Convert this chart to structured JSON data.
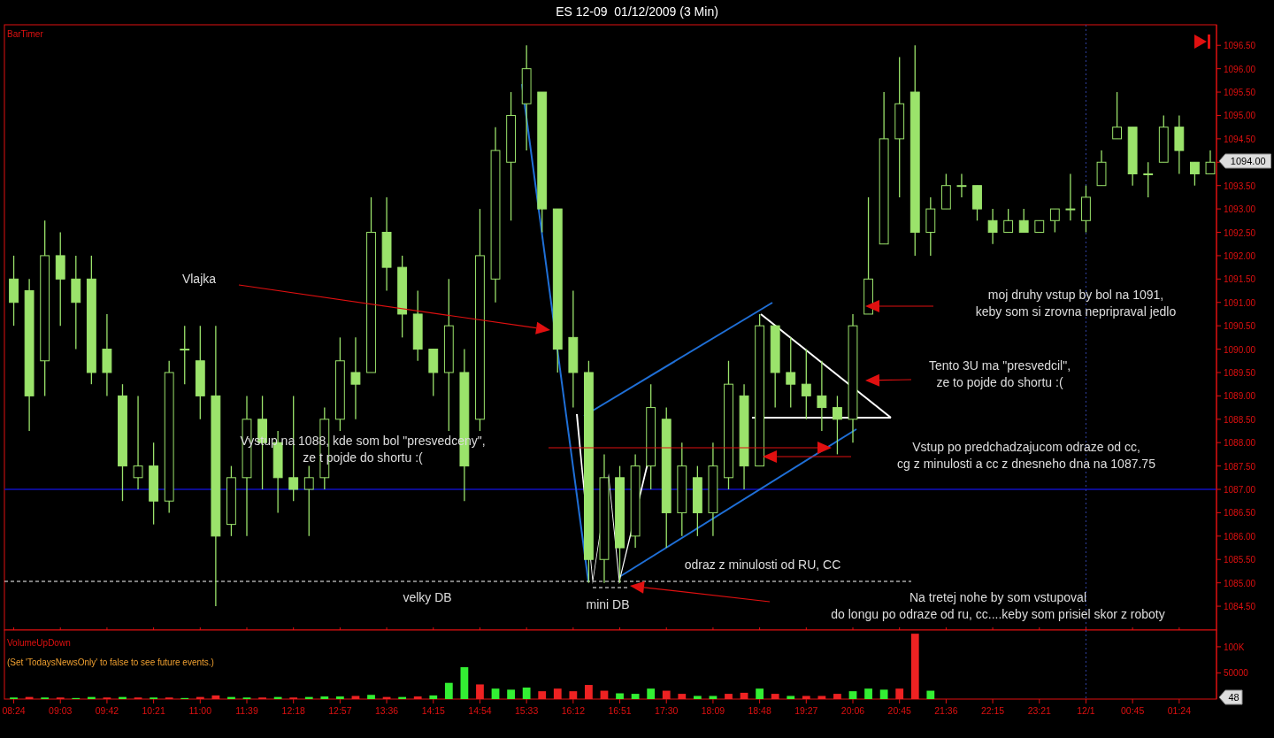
{
  "chart_data": [
    {
      "type": "candlestick",
      "title": "ES 12-09  01/12/2009 (3 Min)",
      "ylim": [
        1083.99,
        1096.94
      ],
      "tick_labels": "y",
      "color": "#9be36b",
      "categories": [
        "08:24",
        null,
        null,
        "09:03",
        null,
        null,
        "09:42",
        null,
        null,
        "10:21",
        null,
        null,
        "11:00",
        null,
        null,
        "11:39",
        null,
        null,
        "12:18",
        null,
        null,
        "12:57",
        null,
        null,
        "13:36",
        null,
        null,
        "14:15",
        null,
        null,
        "14:54",
        null,
        null,
        "15:33",
        null,
        null,
        "16:12",
        null,
        null,
        "16:51",
        null,
        null,
        "17:30",
        null,
        null,
        "18:09",
        null,
        null,
        "18:48",
        null,
        null,
        "19:27",
        null,
        null,
        "20:06",
        null,
        null,
        "20:45",
        null,
        null,
        "21:36",
        null,
        null,
        "22:15",
        null,
        null,
        "23:21",
        null,
        null,
        "12/1",
        null,
        null,
        "00:45",
        null,
        null,
        "01:24",
        null,
        null
      ],
      "ohlc": [
        [
          1091.5,
          1092.0,
          1090.5,
          1091.0
        ],
        [
          1091.25,
          1091.5,
          1088.25,
          1089.0
        ],
        [
          1089.75,
          1092.75,
          1089.0,
          1092.0
        ],
        [
          1092.0,
          1092.5,
          1090.5,
          1091.5
        ],
        [
          1091.5,
          1092.0,
          1090.0,
          1091.0
        ],
        [
          1091.5,
          1092.0,
          1089.25,
          1089.5
        ],
        [
          1090.0,
          1090.75,
          1089.0,
          1089.5
        ],
        [
          1089.0,
          1089.25,
          1086.75,
          1087.5
        ],
        [
          1087.25,
          1089.0,
          1087.0,
          1087.5
        ],
        [
          1087.5,
          1088.0,
          1086.25,
          1086.75
        ],
        [
          1086.75,
          1089.75,
          1086.5,
          1089.5
        ],
        [
          1090.0,
          1090.5,
          1089.25,
          1090.0
        ],
        [
          1089.75,
          1090.5,
          1088.5,
          1089.0
        ],
        [
          1089.0,
          1090.5,
          1084.5,
          1086.0
        ],
        [
          1086.25,
          1087.5,
          1086.0,
          1087.25
        ],
        [
          1087.25,
          1089.0,
          1086.0,
          1088.5
        ],
        [
          1088.5,
          1089.0,
          1087.0,
          1088.0
        ],
        [
          1088.0,
          1088.25,
          1086.5,
          1087.25
        ],
        [
          1087.25,
          1089.0,
          1086.75,
          1087.0
        ],
        [
          1087.0,
          1087.5,
          1086.0,
          1087.25
        ],
        [
          1087.25,
          1088.75,
          1087.0,
          1088.5
        ],
        [
          1088.5,
          1090.25,
          1088.25,
          1089.75
        ],
        [
          1089.5,
          1090.25,
          1088.5,
          1089.25
        ],
        [
          1089.5,
          1093.25,
          1089.5,
          1092.5
        ],
        [
          1092.5,
          1093.25,
          1091.25,
          1091.75
        ],
        [
          1091.75,
          1092.0,
          1090.25,
          1090.75
        ],
        [
          1090.75,
          1091.25,
          1089.75,
          1090.0
        ],
        [
          1090.0,
          1090.0,
          1089.0,
          1089.5
        ],
        [
          1089.5,
          1091.5,
          1088.25,
          1090.5
        ],
        [
          1089.5,
          1090.0,
          1086.75,
          1087.5
        ],
        [
          1088.5,
          1093.0,
          1088.25,
          1092.0
        ],
        [
          1091.5,
          1094.75,
          1091.0,
          1094.25
        ],
        [
          1094.0,
          1095.5,
          1092.75,
          1095.0
        ],
        [
          1095.25,
          1096.5,
          1094.25,
          1096.0
        ],
        [
          1095.5,
          1095.5,
          1092.5,
          1093.0
        ],
        [
          1093.0,
          1093.0,
          1089.5,
          1090.0
        ],
        [
          1090.25,
          1091.25,
          1088.75,
          1089.5
        ],
        [
          1089.5,
          1089.75,
          1085.0,
          1085.5
        ],
        [
          1085.5,
          1087.75,
          1085.0,
          1087.25
        ],
        [
          1087.25,
          1087.5,
          1085.0,
          1085.75
        ],
        [
          1086.0,
          1087.75,
          1085.75,
          1087.5
        ],
        [
          1087.5,
          1089.25,
          1087.0,
          1088.75
        ],
        [
          1088.5,
          1088.75,
          1085.75,
          1086.5
        ],
        [
          1086.5,
          1088.0,
          1086.0,
          1087.5
        ],
        [
          1087.25,
          1087.5,
          1086.0,
          1086.5
        ],
        [
          1086.5,
          1088.0,
          1086.0,
          1087.5
        ],
        [
          1087.25,
          1089.75,
          1087.0,
          1089.25
        ],
        [
          1089.0,
          1089.25,
          1087.0,
          1087.5
        ],
        [
          1087.5,
          1090.75,
          1087.5,
          1090.5
        ],
        [
          1090.5,
          1090.5,
          1088.75,
          1089.5
        ],
        [
          1089.5,
          1090.25,
          1088.75,
          1089.25
        ],
        [
          1089.25,
          1090.0,
          1088.5,
          1089.0
        ],
        [
          1089.0,
          1089.75,
          1088.25,
          1088.75
        ],
        [
          1088.75,
          1089.0,
          1087.75,
          1088.5
        ],
        [
          1088.5,
          1090.75,
          1088.0,
          1090.5
        ],
        [
          1090.75,
          1093.25,
          1090.75,
          1091.5
        ],
        [
          1092.25,
          1095.5,
          1092.25,
          1094.5
        ],
        [
          1094.5,
          1096.25,
          1093.25,
          1095.25
        ],
        [
          1095.5,
          1096.5,
          1092.0,
          1092.5
        ],
        [
          1092.5,
          1093.25,
          1092.0,
          1093.0
        ],
        [
          1093.0,
          1093.75,
          1093.0,
          1093.5
        ],
        [
          1093.5,
          1093.75,
          1093.25,
          1093.5
        ],
        [
          1093.5,
          1093.5,
          1092.75,
          1093.0
        ],
        [
          1092.75,
          1093.0,
          1092.25,
          1092.5
        ],
        [
          1092.5,
          1093.0,
          1092.5,
          1092.75
        ],
        [
          1092.75,
          1093.0,
          1092.5,
          1092.5
        ],
        [
          1092.5,
          1092.75,
          1092.5,
          1092.75
        ],
        [
          1092.75,
          1093.0,
          1092.5,
          1093.0
        ],
        [
          1093.0,
          1093.75,
          1092.75,
          1093.0
        ],
        [
          1092.75,
          1093.5,
          1092.5,
          1093.25
        ],
        [
          1093.5,
          1094.25,
          1093.5,
          1094.0
        ],
        [
          1094.5,
          1095.5,
          1094.5,
          1094.75
        ],
        [
          1094.75,
          1094.75,
          1093.5,
          1093.75
        ],
        [
          1093.75,
          1094.0,
          1093.25,
          1093.75
        ],
        [
          1094.0,
          1095.0,
          1094.0,
          1094.75
        ],
        [
          1094.75,
          1095.0,
          1093.75,
          1094.25
        ],
        [
          1094.0,
          1094.0,
          1093.5,
          1093.75
        ],
        [
          1093.75,
          1094.25,
          1093.75,
          1094.0
        ]
      ],
      "yticks": [
        {
          "value": 1084.5,
          "label": "1084.50"
        },
        {
          "value": 1085,
          "label": "1085.00"
        },
        {
          "value": 1085.5,
          "label": "1085.50"
        },
        {
          "value": 1086,
          "label": "1086.00"
        },
        {
          "value": 1086.5,
          "label": "1086.50"
        },
        {
          "value": 1087,
          "label": "1087.00"
        },
        {
          "value": 1087.5,
          "label": "1087.50"
        },
        {
          "value": 1088,
          "label": "1088.00"
        },
        {
          "value": 1088.5,
          "label": "1088.50"
        },
        {
          "value": 1089,
          "label": "1089.00"
        },
        {
          "value": 1089.5,
          "label": "1089.50"
        },
        {
          "value": 1090,
          "label": "1090.00"
        },
        {
          "value": 1090.5,
          "label": "1090.50"
        },
        {
          "value": 1091,
          "label": "1091.00"
        },
        {
          "value": 1091.5,
          "label": "1091.50"
        },
        {
          "value": 1092,
          "label": "1092.00"
        },
        {
          "value": 1092.5,
          "label": "1092.50"
        },
        {
          "value": 1093,
          "label": "1093.00"
        },
        {
          "value": 1093.5,
          "label": "1093.50"
        },
        {
          "value": 1094,
          "label": null
        },
        {
          "value": 1094.5,
          "label": "1094.50"
        },
        {
          "value": 1095,
          "label": "1095.00"
        },
        {
          "value": 1095.5,
          "label": "1095.50"
        },
        {
          "value": 1096,
          "label": "1096.00"
        },
        {
          "value": 1096.5,
          "label": "1096.50"
        }
      ],
      "ref_lines": [
        {
          "axis": "y",
          "value": 1087,
          "color": "#1010c0"
        },
        {
          "axis": "x",
          "value": "12/1",
          "color": "#3040a0",
          "line_style": "dotted"
        }
      ],
      "annotations": [
        "BarTimer",
        "Vlajka",
        "Vystup na 1088, kde som bol \"presvedceny\",\nze t pojde do shortu :(",
        "velky DB",
        "mini DB",
        "odraz z minulosti od RU, CC",
        "Na tretej nohe by som vstupoval\ndo longu po odraze od ru, cc....keby som prisiel skor z roboty",
        "moj druhy vstup by bol na 1091,\nkeby som si zrovna nepripraval jedlo",
        "Tento 3U ma \"presvedcil\",\nze to pojde do shortu :(",
        "Vstup po predchadzajucom odraze od cc,\ncg z minulosti a cc z dnesneho dna na 1087.75",
        "1094.00"
      ]
    },
    {
      "type": "bar",
      "ylim": [
        0,
        132000
      ],
      "categories": [
        "08:24",
        null,
        null,
        "09:03",
        null,
        null,
        "09:42",
        null,
        null,
        "10:21",
        null,
        null,
        "11:00",
        null,
        null,
        "11:39",
        null,
        null,
        "12:18",
        null,
        null,
        "12:57",
        null,
        null,
        "13:36",
        null,
        null,
        "14:15",
        null,
        null,
        "14:54",
        null,
        null,
        "15:33",
        null,
        null,
        "16:12",
        null,
        null,
        "16:51",
        null,
        null,
        "17:30",
        null,
        null,
        "18:09",
        null,
        null,
        "18:48",
        null,
        null,
        "19:27",
        null,
        null,
        "20:06",
        null,
        null,
        "20:45",
        null,
        null,
        "21:36",
        null,
        null,
        "22:15",
        null,
        null,
        "23:21",
        null,
        null,
        "12/1",
        null,
        null,
        "00:45",
        null,
        null,
        "01:24",
        null,
        null
      ],
      "values": [
        3000,
        4000,
        3000,
        3000,
        2000,
        4000,
        3000,
        4000,
        3000,
        3000,
        3000,
        2000,
        4000,
        7000,
        4000,
        3000,
        3000,
        4000,
        3000,
        4000,
        5000,
        5000,
        6000,
        8000,
        4000,
        4000,
        5000,
        7000,
        31000,
        61000,
        28000,
        20000,
        18000,
        22000,
        15000,
        20000,
        15000,
        27000,
        16000,
        11000,
        10000,
        20000,
        16000,
        10000,
        6000,
        6000,
        10000,
        12000,
        20000,
        10000,
        6000,
        6000,
        6000,
        10000,
        15000,
        20000,
        18000,
        20000,
        125000,
        16000,
        null,
        null,
        null,
        null,
        null,
        null,
        null,
        null,
        null,
        null,
        null,
        null,
        null,
        null,
        null,
        null,
        null,
        null
      ],
      "colors": [
        "#33ee33",
        "#ee2222",
        "#33ee33",
        "#ee2222",
        "#33ee33",
        "#33ee33",
        "#ee2222",
        "#33ee33",
        "#ee2222",
        "#33ee33",
        "#ee2222",
        "#33ee33",
        "#ee2222",
        "#ee2222",
        "#33ee33",
        "#33ee33",
        "#ee2222",
        "#33ee33",
        "#ee2222",
        "#33ee33",
        "#33ee33",
        "#33ee33",
        "#ee2222",
        "#33ee33",
        "#ee2222",
        "#33ee33",
        "#ee2222",
        "#33ee33",
        "#33ee33",
        "#33ee33",
        "#ee2222",
        "#33ee33",
        "#33ee33",
        "#33ee33",
        "#ee2222",
        "#ee2222",
        "#ee2222",
        "#ee2222",
        "#ee2222",
        "#33ee33",
        "#33ee33",
        "#33ee33",
        "#ee2222",
        "#ee2222",
        "#33ee33",
        "#33ee33",
        "#ee2222",
        "#ee2222",
        "#33ee33",
        "#ee2222",
        "#33ee33",
        "#ee2222",
        "#ee2222",
        "#ee2222",
        "#33ee33",
        "#33ee33",
        "#33ee33",
        "#ee2222",
        "#ee2222",
        "#33ee33",
        null,
        null,
        null,
        null,
        null,
        null,
        null,
        null,
        null,
        null,
        null,
        null,
        null,
        null,
        null,
        null,
        null,
        null
      ],
      "yticks": [
        50000,
        {
          "value": 100000,
          "label": "100K"
        }
      ],
      "ref_lines": [
        {
          "axis": "x",
          "value": "12/1",
          "color": "#3040a0",
          "line_style": "dotted"
        }
      ],
      "annotations": [
        "VolumeUpDown",
        "(Set 'TodaysNewsOnly' to false to see future events.)",
        "48"
      ]
    }
  ]
}
